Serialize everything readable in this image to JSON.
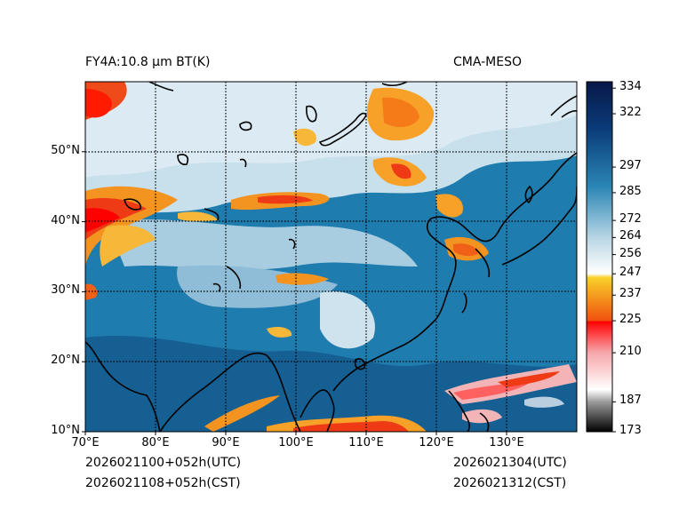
{
  "header": {
    "product_title": "FY4A:10.8 µm BT(K)",
    "source_label": "CMA-MESO"
  },
  "footer": {
    "init_utc": "2026021100+052h(UTC)",
    "init_cst": "2026021108+052h(CST)",
    "valid_utc": "2026021304(UTC)",
    "valid_cst": "2026021312(CST)"
  },
  "map": {
    "lon_range": [
      70,
      140
    ],
    "lat_range": [
      10,
      60
    ],
    "lon_ticks": [
      {
        "value": 70,
        "label": "70°E"
      },
      {
        "value": 80,
        "label": "80°E"
      },
      {
        "value": 90,
        "label": "90°E"
      },
      {
        "value": 100,
        "label": "100°E"
      },
      {
        "value": 110,
        "label": "110°E"
      },
      {
        "value": 120,
        "label": "120°E"
      },
      {
        "value": 130,
        "label": "130°E"
      }
    ],
    "lat_ticks": [
      {
        "value": 10,
        "label": "10°N"
      },
      {
        "value": 20,
        "label": "20°N"
      },
      {
        "value": 30,
        "label": "30°N"
      },
      {
        "value": 40,
        "label": "40°N"
      },
      {
        "value": 50,
        "label": "50°N"
      }
    ]
  },
  "colorbar": {
    "range": [
      173,
      337
    ],
    "ticks": [
      {
        "value": 173,
        "label": "173"
      },
      {
        "value": 187,
        "label": "187"
      },
      {
        "value": 210,
        "label": "210"
      },
      {
        "value": 225,
        "label": "225"
      },
      {
        "value": 237,
        "label": "237"
      },
      {
        "value": 247,
        "label": "247"
      },
      {
        "value": 256,
        "label": "256"
      },
      {
        "value": 264,
        "label": "264"
      },
      {
        "value": 272,
        "label": "272"
      },
      {
        "value": 285,
        "label": "285"
      },
      {
        "value": 297,
        "label": "297"
      },
      {
        "value": 322,
        "label": "322"
      },
      {
        "value": 334,
        "label": "334"
      }
    ],
    "colors": {
      "black": "#000000",
      "gray": "#9a9a9a",
      "white": "#ffffff",
      "pink": "#f7a8ac",
      "red": "#ff0000",
      "orange": "#f07010",
      "yellow": "#f8d028",
      "pale_blue": "#d9e9f2",
      "blue": "#2a86b5",
      "dark_blue": "#0a3a78",
      "navy": "#081848"
    }
  }
}
